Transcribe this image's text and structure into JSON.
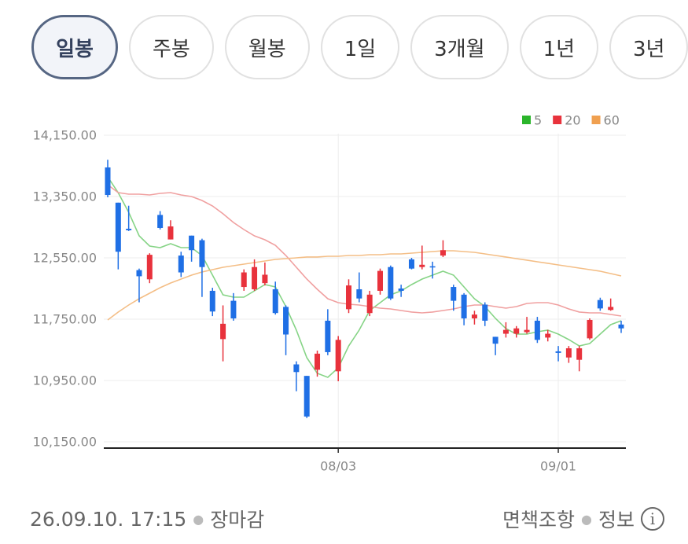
{
  "tabs": [
    "일봉",
    "주봉",
    "월봉",
    "1일",
    "3개월",
    "1년",
    "3년"
  ],
  "selected_tab": "일봉",
  "chart_data": {
    "type": "candlestick",
    "categories": [
      null,
      null,
      null,
      null,
      null,
      null,
      null,
      null,
      null,
      null,
      null,
      null,
      null,
      null,
      null,
      null,
      null,
      null,
      null,
      null,
      null,
      null,
      "08/03",
      null,
      null,
      null,
      null,
      null,
      null,
      null,
      null,
      null,
      null,
      null,
      null,
      null,
      null,
      null,
      null,
      null,
      null,
      null,
      null,
      "09/01",
      null,
      null,
      null,
      null,
      null,
      null
    ],
    "open": [
      13730,
      13270,
      12930,
      12390,
      12270,
      13110,
      12790,
      12580,
      12840,
      12780,
      12120,
      11490,
      11990,
      12170,
      12140,
      12220,
      12140,
      11910,
      11160,
      11010,
      11090,
      11730,
      11070,
      11880,
      12140,
      11830,
      12120,
      12430,
      12150,
      12530,
      12430,
      12440,
      12580,
      12170,
      12070,
      11760,
      11940,
      11520,
      11560,
      11560,
      11580,
      11730,
      11510,
      11330,
      11250,
      11220,
      11500,
      12000,
      11870,
      11680
    ],
    "high": [
      13830,
      13270,
      13230,
      12410,
      12610,
      13160,
      13040,
      12630,
      12840,
      12800,
      12160,
      11930,
      12090,
      12400,
      12530,
      12490,
      12240,
      11930,
      11200,
      11010,
      11340,
      11880,
      11530,
      12270,
      12360,
      12120,
      12410,
      12450,
      12200,
      12550,
      12710,
      12500,
      12780,
      12200,
      12090,
      11860,
      11970,
      11520,
      11710,
      11660,
      11780,
      11780,
      11610,
      11400,
      11400,
      11400,
      11760,
      12030,
      12020,
      11730
    ],
    "low": [
      13340,
      12400,
      12900,
      11970,
      12220,
      12920,
      12790,
      12300,
      12500,
      12040,
      11790,
      11200,
      11730,
      12120,
      12120,
      12190,
      11810,
      11280,
      10810,
      10460,
      11000,
      11280,
      10940,
      11830,
      11970,
      11790,
      12070,
      12000,
      12040,
      12400,
      12400,
      12280,
      12560,
      11860,
      11670,
      11680,
      11660,
      11280,
      11510,
      11510,
      11560,
      11440,
      11460,
      11200,
      11180,
      11070,
      11480,
      11860,
      11860,
      11570
    ],
    "close": [
      13370,
      12630,
      12910,
      12310,
      12590,
      12940,
      12960,
      12360,
      12650,
      12430,
      11850,
      11690,
      11760,
      12360,
      12430,
      12330,
      11830,
      11550,
      11060,
      10480,
      11300,
      11320,
      11480,
      12190,
      12020,
      12070,
      12380,
      12020,
      12120,
      12410,
      12460,
      12430,
      12650,
      11990,
      11760,
      11810,
      11730,
      11430,
      11610,
      11630,
      11610,
      11480,
      11560,
      11310,
      11370,
      11370,
      11740,
      11890,
      11910,
      11630
    ],
    "up_color": "#e8323c",
    "down_color": "#1f6fe5",
    "series": [
      {
        "name": "5",
        "color": "#86d486",
        "values": [
          13606,
          13400,
          13144,
          12837,
          12704,
          12683,
          12735,
          12683,
          12683,
          12581,
          12324,
          12068,
          12037,
          12037,
          12119,
          12201,
          12171,
          11914,
          11607,
          11248,
          11043,
          10991,
          11115,
          11401,
          11607,
          11863,
          11965,
          12068,
          12119,
          12201,
          12273,
          12324,
          12376,
          12324,
          12171,
          12017,
          11914,
          11760,
          11627,
          11555,
          11555,
          11586,
          11607,
          11555,
          11483,
          11401,
          11432,
          11555,
          11678,
          11730
        ]
      },
      {
        "name": "20",
        "color": "#f0a0a0",
        "values": [
          13504,
          13401,
          13381,
          13381,
          13371,
          13391,
          13401,
          13371,
          13350,
          13299,
          13227,
          13125,
          13012,
          12919,
          12837,
          12786,
          12714,
          12581,
          12427,
          12273,
          12140,
          12017,
          11965,
          11945,
          11935,
          11914,
          11894,
          11883,
          11863,
          11843,
          11832,
          11843,
          11863,
          11883,
          11914,
          11935,
          11935,
          11914,
          11894,
          11914,
          11955,
          11965,
          11965,
          11935,
          11883,
          11843,
          11832,
          11832,
          11812,
          11791
        ]
      },
      {
        "name": "60",
        "color": "#f4be86",
        "values": [
          11740,
          11842,
          11935,
          12017,
          12089,
          12160,
          12222,
          12273,
          12324,
          12365,
          12396,
          12427,
          12448,
          12468,
          12489,
          12509,
          12530,
          12540,
          12550,
          12561,
          12561,
          12571,
          12571,
          12581,
          12581,
          12591,
          12591,
          12601,
          12601,
          12612,
          12622,
          12632,
          12642,
          12642,
          12632,
          12622,
          12601,
          12581,
          12561,
          12540,
          12520,
          12499,
          12479,
          12458,
          12437,
          12417,
          12396,
          12376,
          12345,
          12314
        ]
      }
    ],
    "ylim": [
      10068,
      14427
    ],
    "yticks": [
      {
        "value": 10150,
        "label": "10,150.00"
      },
      {
        "value": 10950,
        "label": "10,950.00"
      },
      {
        "value": 11750,
        "label": "11,750.00"
      },
      {
        "value": 12550,
        "label": "12,550.00"
      },
      {
        "value": 13350,
        "label": "13,350.00"
      },
      {
        "value": 14150,
        "label": "14,150.00"
      }
    ],
    "grid": true,
    "legend": "top-right"
  },
  "footer": {
    "timestamp": "26.09.10. 17:15",
    "status": "장마감",
    "disclaimer": "면책조항",
    "info": "정보"
  }
}
